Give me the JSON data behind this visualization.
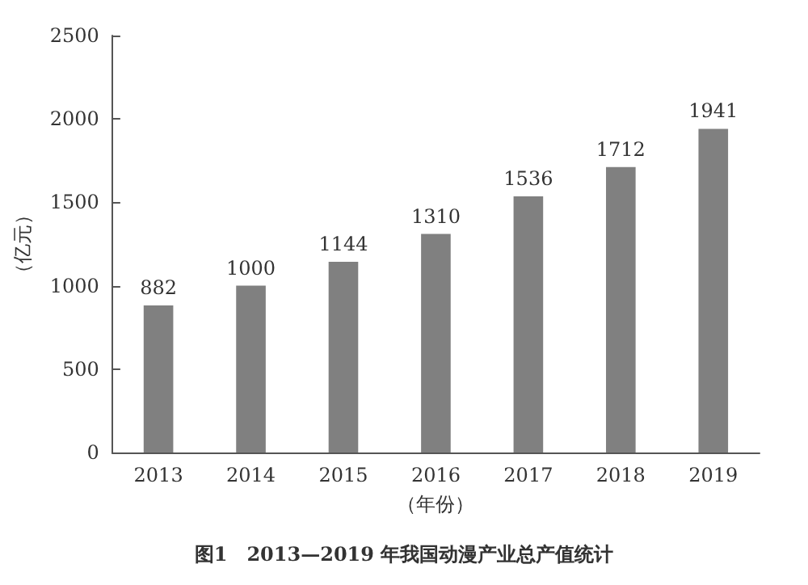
{
  "chart_data": {
    "type": "bar",
    "title": "图1　2013—2019 年我国动漫产业总产值统计",
    "xlabel": "（年份）",
    "ylabel": "（亿元）",
    "categories": [
      "2013",
      "2014",
      "2015",
      "2016",
      "2017",
      "2018",
      "2019"
    ],
    "values": [
      882,
      1000,
      1144,
      1310,
      1536,
      1712,
      1941
    ],
    "color": "#808080",
    "ylim": [
      0,
      2500
    ],
    "yticks": [
      0,
      500,
      1000,
      1500,
      2000,
      2500
    ],
    "grid": false,
    "data_labels": true
  }
}
